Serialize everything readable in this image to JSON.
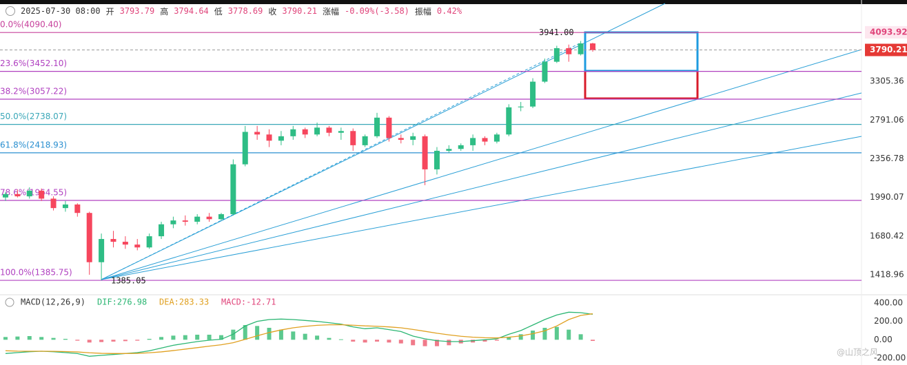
{
  "header": {
    "datetime": "2025-07-30 08:00",
    "open_label": "开",
    "open": 3793.79,
    "high_label": "高",
    "high": 3794.64,
    "low_label": "低",
    "low": 3778.69,
    "close_label": "收",
    "close": 3790.21,
    "change_label": "涨幅",
    "change": "-0.09%(-3.58)",
    "amplitude_label": "振幅",
    "amplitude": "0.42%"
  },
  "chart_data": [
    {
      "type": "candlestick",
      "log_scale": true,
      "ylim": [
        1313,
        4714
      ],
      "up_color": "#2ebd85",
      "down_color": "#f6465d",
      "yticks": [
        1418.96,
        1680.42,
        1990.07,
        2356.78,
        2791.06,
        3305.36
      ],
      "open": [
        1990,
        2020,
        2000,
        2050,
        1980,
        1900,
        1930,
        1860,
        1500,
        1660,
        1640,
        1620,
        1600,
        1680,
        1770,
        1800,
        1790,
        1830,
        1810,
        1850,
        2300,
        2650,
        2620,
        2550,
        2600,
        2680,
        2620,
        2700,
        2640,
        2660,
        2500,
        2600,
        2820,
        2580,
        2560,
        2600,
        2250,
        2440,
        2460,
        2500,
        2580,
        2540,
        2620,
        2950,
        2960,
        3300,
        3600,
        3820,
        3720,
        3900
      ],
      "high": [
        2040,
        2060,
        2080,
        2070,
        2000,
        1960,
        1940,
        1870,
        1700,
        1720,
        1680,
        1660,
        1700,
        1790,
        1830,
        1840,
        1850,
        1860,
        1860,
        2350,
        2720,
        2720,
        2680,
        2660,
        2720,
        2700,
        2760,
        2720,
        2700,
        2690,
        2620,
        2880,
        2840,
        2620,
        2640,
        2620,
        2480,
        2500,
        2520,
        2620,
        2600,
        2640,
        2990,
        3020,
        3350,
        3650,
        3860,
        3880,
        3941,
        3910
      ],
      "low": [
        1960,
        1990,
        1980,
        1960,
        1880,
        1870,
        1830,
        1420,
        1385,
        1600,
        1590,
        1580,
        1590,
        1660,
        1740,
        1760,
        1770,
        1790,
        1800,
        1840,
        2280,
        2560,
        2480,
        2500,
        2560,
        2580,
        2600,
        2600,
        2560,
        2440,
        2480,
        2580,
        2540,
        2520,
        2500,
        2100,
        2200,
        2420,
        2440,
        2440,
        2500,
        2520,
        2600,
        2900,
        2940,
        3280,
        3580,
        3600,
        3700,
        3760
      ],
      "close": [
        2020,
        2000,
        2050,
        1980,
        1900,
        1930,
        1860,
        1500,
        1660,
        1640,
        1620,
        1600,
        1680,
        1770,
        1800,
        1790,
        1830,
        1810,
        1850,
        2300,
        2650,
        2620,
        2550,
        2600,
        2680,
        2620,
        2700,
        2640,
        2660,
        2500,
        2600,
        2820,
        2580,
        2560,
        2600,
        2250,
        2440,
        2460,
        2500,
        2580,
        2540,
        2620,
        2950,
        2960,
        3300,
        3600,
        3820,
        3720,
        3900,
        3790.21
      ],
      "fib_levels": [
        {
          "value": 4090.4,
          "label": "0.0%(4090.40)",
          "color": "#c7409b"
        },
        {
          "value": 3452.1,
          "label": "23.6%(3452.10)",
          "color": "#b040c0"
        },
        {
          "value": 3057.22,
          "label": "38.2%(3057.22)",
          "color": "#b040c0"
        },
        {
          "value": 2738.07,
          "label": "50.0%(2738.07)",
          "color": "#3aa7b8"
        },
        {
          "value": 2418.93,
          "label": "61.8%(2418.93)",
          "color": "#2a8fd0"
        },
        {
          "value": 1964.55,
          "label": "78.6%(1964.55)",
          "color": "#b040c0"
        },
        {
          "value": 1385.75,
          "label": "100.0%(1385.75)",
          "color": "#b040c0"
        }
      ],
      "high_annotation": {
        "value": 3941,
        "label": "3941.00"
      },
      "low_annotation": 1385.05,
      "price_tags": [
        {
          "value": 4093.92,
          "color": "#e0457b"
        },
        {
          "value": 3790.21,
          "color": "#e53935"
        }
      ]
    },
    {
      "type": "macd",
      "title": "MACD(12,26,9)",
      "ylim": [
        -275,
        490
      ],
      "yticks": [
        {
          "value": 400,
          "label": "400.00"
        },
        {
          "value": 200,
          "label": "200.00"
        },
        {
          "value": 0,
          "label": "0.00"
        },
        {
          "value": -200,
          "label": "-200.00"
        }
      ],
      "series": [
        {
          "name": "DIF:276.98",
          "color": "#2bb673",
          "values": [
            -150,
            -140,
            -130,
            -125,
            -130,
            -140,
            -150,
            -180,
            -170,
            -160,
            -150,
            -140,
            -120,
            -90,
            -60,
            -40,
            -20,
            -5,
            5,
            60,
            150,
            200,
            220,
            225,
            220,
            210,
            200,
            185,
            170,
            140,
            120,
            130,
            110,
            90,
            40,
            10,
            -10,
            -20,
            -20,
            -10,
            0,
            10,
            60,
            100,
            160,
            220,
            270,
            300,
            295,
            276.98
          ]
        },
        {
          "name": "DEA:283.33",
          "color": "#e0a020",
          "values": [
            -120,
            -124,
            -125,
            -125,
            -126,
            -129,
            -133,
            -142,
            -148,
            -150,
            -150,
            -148,
            -142,
            -132,
            -118,
            -102,
            -86,
            -70,
            -55,
            -32,
            4,
            43,
            78,
            107,
            130,
            146,
            157,
            163,
            164,
            158,
            151,
            147,
            140,
            130,
            112,
            92,
            71,
            53,
            38,
            28,
            22,
            20,
            28,
            42,
            66,
            97,
            150,
            220,
            265,
            283.33
          ]
        }
      ],
      "histogram": {
        "name": "MACD:-12.71",
        "label_color": "#e0457b",
        "up_color": "#5cc98f",
        "down_color": "#f07a8a",
        "values": [
          30,
          35,
          40,
          30,
          20,
          10,
          -10,
          -30,
          -25,
          -20,
          -15,
          -10,
          10,
          30,
          45,
          50,
          55,
          55,
          50,
          110,
          160,
          150,
          130,
          110,
          90,
          65,
          45,
          20,
          5,
          -20,
          -30,
          -20,
          -30,
          -40,
          -60,
          -70,
          -70,
          -60,
          -40,
          -30,
          -20,
          -10,
          30,
          60,
          100,
          130,
          140,
          110,
          60,
          -12.71
        ]
      }
    }
  ],
  "watermark": "@山顶之风"
}
